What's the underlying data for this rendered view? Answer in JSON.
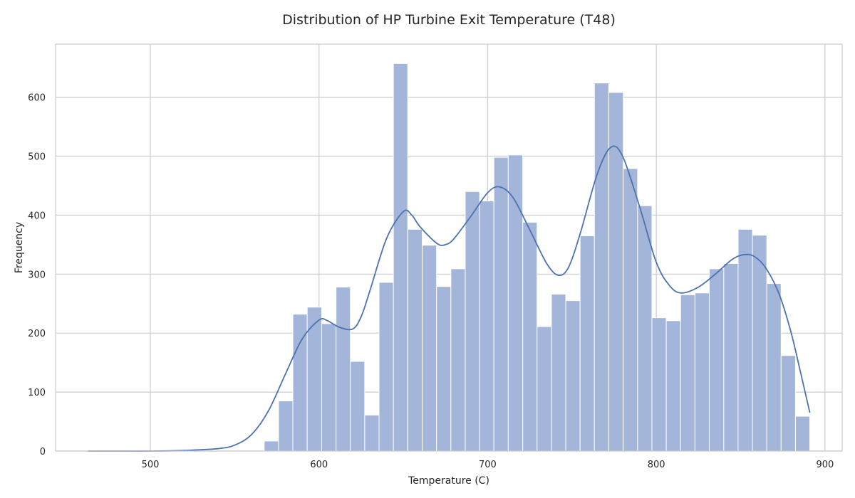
{
  "chart_data": {
    "type": "bar",
    "title": "Distribution of HP Turbine Exit Temperature (T48)",
    "xlabel": "Temperature (C)",
    "ylabel": "Frequency",
    "xlim": [
      443.8,
      910.2
    ],
    "ylim": [
      0,
      690
    ],
    "xticks": [
      500,
      600,
      700,
      800,
      900
    ],
    "yticks": [
      0,
      100,
      200,
      300,
      400,
      500,
      600
    ],
    "grid": true,
    "legend": "none",
    "colors": {
      "bar": "#a3b5d8",
      "bar_edge": "#ffffff",
      "kde": "#4c72b0",
      "grid": "#cccccc",
      "frame": "#cccccc"
    },
    "bins": [
      {
        "x0": 567.5,
        "x1": 576.0,
        "count": 17
      },
      {
        "x0": 576.0,
        "x1": 584.5,
        "count": 85
      },
      {
        "x0": 584.5,
        "x1": 593.0,
        "count": 232
      },
      {
        "x0": 593.0,
        "x1": 601.6,
        "count": 244
      },
      {
        "x0": 601.6,
        "x1": 610.1,
        "count": 216
      },
      {
        "x0": 610.1,
        "x1": 618.6,
        "count": 278
      },
      {
        "x0": 618.6,
        "x1": 627.1,
        "count": 152
      },
      {
        "x0": 627.1,
        "x1": 635.6,
        "count": 61
      },
      {
        "x0": 635.6,
        "x1": 644.1,
        "count": 286
      },
      {
        "x0": 644.1,
        "x1": 652.6,
        "count": 657
      },
      {
        "x0": 652.6,
        "x1": 661.2,
        "count": 376
      },
      {
        "x0": 661.2,
        "x1": 669.7,
        "count": 349
      },
      {
        "x0": 669.7,
        "x1": 678.2,
        "count": 279
      },
      {
        "x0": 678.2,
        "x1": 686.7,
        "count": 309
      },
      {
        "x0": 686.7,
        "x1": 695.2,
        "count": 440
      },
      {
        "x0": 695.2,
        "x1": 703.7,
        "count": 424
      },
      {
        "x0": 703.7,
        "x1": 712.2,
        "count": 498
      },
      {
        "x0": 712.2,
        "x1": 720.8,
        "count": 502
      },
      {
        "x0": 720.8,
        "x1": 729.3,
        "count": 388
      },
      {
        "x0": 729.3,
        "x1": 737.8,
        "count": 211
      },
      {
        "x0": 737.8,
        "x1": 746.3,
        "count": 266
      },
      {
        "x0": 746.3,
        "x1": 754.8,
        "count": 255
      },
      {
        "x0": 754.8,
        "x1": 763.3,
        "count": 365
      },
      {
        "x0": 763.3,
        "x1": 771.8,
        "count": 624
      },
      {
        "x0": 771.8,
        "x1": 780.4,
        "count": 608
      },
      {
        "x0": 780.4,
        "x1": 788.9,
        "count": 479
      },
      {
        "x0": 788.9,
        "x1": 797.4,
        "count": 416
      },
      {
        "x0": 797.4,
        "x1": 805.9,
        "count": 226
      },
      {
        "x0": 805.9,
        "x1": 814.4,
        "count": 221
      },
      {
        "x0": 814.4,
        "x1": 822.9,
        "count": 265
      },
      {
        "x0": 822.9,
        "x1": 831.4,
        "count": 268
      },
      {
        "x0": 831.4,
        "x1": 840.0,
        "count": 309
      },
      {
        "x0": 840.0,
        "x1": 848.5,
        "count": 318
      },
      {
        "x0": 848.5,
        "x1": 857.0,
        "count": 376
      },
      {
        "x0": 857.0,
        "x1": 865.5,
        "count": 366
      },
      {
        "x0": 865.5,
        "x1": 874.0,
        "count": 284
      },
      {
        "x0": 874.0,
        "x1": 882.5,
        "count": 162
      },
      {
        "x0": 882.5,
        "x1": 891.0,
        "count": 59
      }
    ],
    "kde_curve": {
      "x": [
        463,
        480,
        500,
        520,
        540,
        550,
        560,
        570,
        580,
        590,
        600,
        605,
        612,
        620,
        625,
        630,
        640,
        650,
        655,
        660,
        670,
        675,
        680,
        690,
        700,
        707,
        715,
        725,
        735,
        742,
        748,
        755,
        765,
        773,
        780,
        790,
        800,
        808,
        815,
        825,
        835,
        845,
        852,
        858,
        865,
        873,
        880,
        885,
        891
      ],
      "y": [
        0,
        0,
        0,
        1,
        4,
        10,
        28,
        68,
        130,
        190,
        222,
        221,
        210,
        207,
        228,
        270,
        360,
        406,
        400,
        380,
        352,
        350,
        360,
        398,
        438,
        448,
        430,
        375,
        318,
        298,
        312,
        370,
        470,
        515,
        500,
        415,
        320,
        280,
        268,
        278,
        300,
        325,
        333,
        330,
        310,
        265,
        200,
        140,
        65
      ]
    }
  }
}
